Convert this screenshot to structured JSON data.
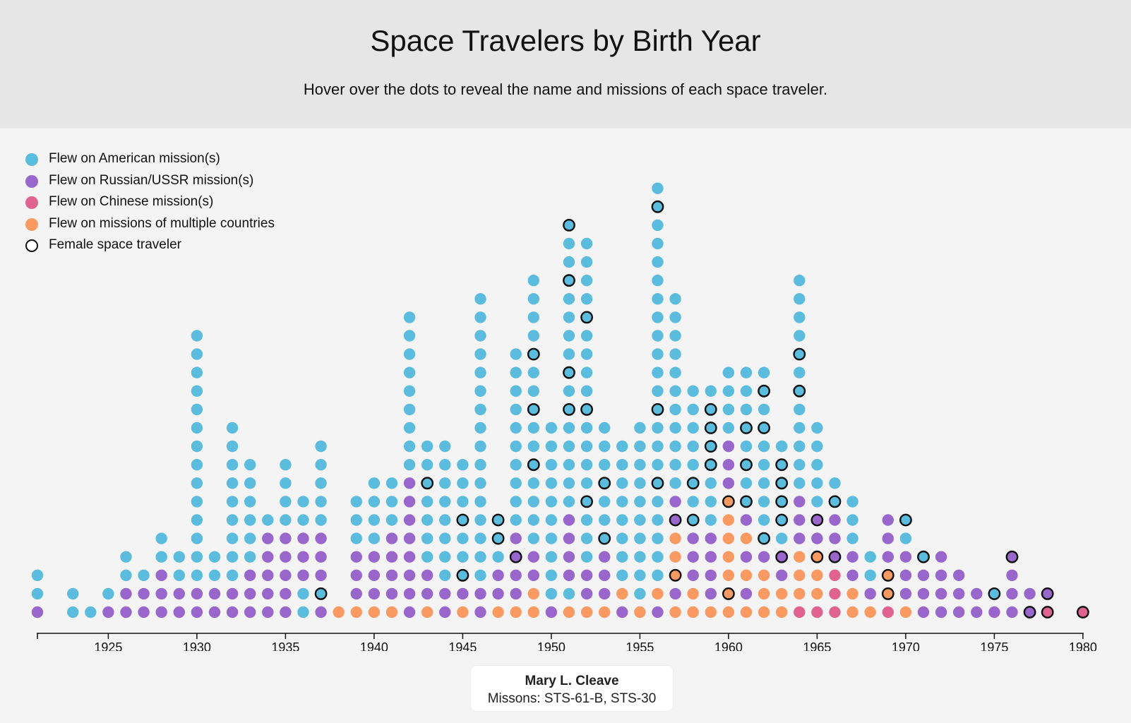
{
  "header": {
    "title": "Space Travelers by Birth Year",
    "subtitle": "Hover over the dots to reveal the name and missions of each space traveler."
  },
  "legend": [
    {
      "label": "Flew on American mission(s)",
      "color": "#5bbcdd",
      "outlined": false
    },
    {
      "label": "Flew on Russian/USSR mission(s)",
      "color": "#9966cc",
      "outlined": false
    },
    {
      "label": "Flew on Chinese mission(s)",
      "color": "#e0628f",
      "outlined": false
    },
    {
      "label": "Flew on missions of multiple countries",
      "color": "#f99a63",
      "outlined": false
    },
    {
      "label": "Female space traveler",
      "color": "#ffffff",
      "outlined": true
    }
  ],
  "colors": {
    "A": "#5bbcdd",
    "R": "#9966cc",
    "C": "#e0628f",
    "M": "#f99a63"
  },
  "tooltip": {
    "name": "Mary L. Cleave",
    "missions": "Missons: STS-61-B, STS-30"
  },
  "chart_data": {
    "type": "scatter",
    "title": "Space Travelers by Birth Year",
    "xlabel": "",
    "ylabel": "",
    "xlim": [
      1921,
      1980
    ],
    "x_ticks": [
      1925,
      1930,
      1935,
      1940,
      1945,
      1950,
      1955,
      1960,
      1965,
      1970,
      1975,
      1980
    ],
    "legend_position": "top-left",
    "stacks_note": "Each year's string lists one dot per traveler from bottom to top; A=American, R=Russian/USSR, C=Chinese, M=multiple countries; 'f' suffix = female.",
    "stacks": {
      "1921": "R A A",
      "1923": "A A",
      "1924": "A",
      "1925": "R A",
      "1926": "R R A A",
      "1927": "R R A",
      "1928": "R R R A A",
      "1929": "R R A A",
      "1930": "R R A A A A A A A A A A A A A A",
      "1931": "R R A A",
      "1932": "R R A A A A A A A A A",
      "1933": "R R R A A A A A A",
      "1934": "R R R R R A",
      "1935": "R R R R R A A A A",
      "1936": "A A R R R A A",
      "1937": "R Af R R R A A A A A",
      "1938": "M",
      "1939": "M R R R A A A",
      "1940": "M R R R A A A A",
      "1941": "M R R R R A A A",
      "1942": "R R R R R R R R A A A A A A A A A",
      "1943": "M R R A A A A Af A A",
      "1944": "R R A A A A A A A A",
      "1945": "M R Af A A Af A A A",
      "1946": "R R A A A A A A A A A A A A A A A A",
      "1947": "M R R A Af Af",
      "1948": "M R R Rf R A A A A A A A A A A",
      "1949": "M M R R A A A A Af A A Af A A Af A A A A",
      "1950": "R A A A A A A A A A A",
      "1951": "M A R R R R A A A A A Af A Af A A A A Af A A Af",
      "1952": "M R R A A A Af A A A A Af A A A A Af A A A A",
      "1953": "M R R R Af A A Af A A A",
      "1954": "R M A A A A A A A A",
      "1955": "M A A A A A A A A A A",
      "1956": "R M A A A A A Af A A A Af A A A A A A A A A A Af A",
      "1957": "M R Mf M M Rf R A A A A A A A A A A A",
      "1958": "M M R R R Af A Af A A A A A",
      "1959": "M R R R R A A A Af Af Af Af A",
      "1960": "M Mf M M M M Mf R R R A A A A",
      "1961": "M R M R M R Af A Af A Af A A A",
      "1962": "M M M R Af A A A A A Af A Af A",
      "1963": "M M R Rf A Af Af Af Af A",
      "1964": "C M M M R R R A A A A A Af A Af A A A A",
      "1965": "C M M Mf R Rf A A A A A",
      "1966": "C C C Rf R R Af A",
      "1967": "M M R R A A A",
      "1968": "M R A A",
      "1969": "C Mf Mf R R R",
      "1970": "M R R R A Af",
      "1971": "R R R Af",
      "1972": "R R R R",
      "1973": "R R R",
      "1974": "R R",
      "1975": "R Af",
      "1976": "R R R Rf",
      "1977": "Rf R",
      "1978": "Cf Rf",
      "1980": "Cf"
    }
  }
}
